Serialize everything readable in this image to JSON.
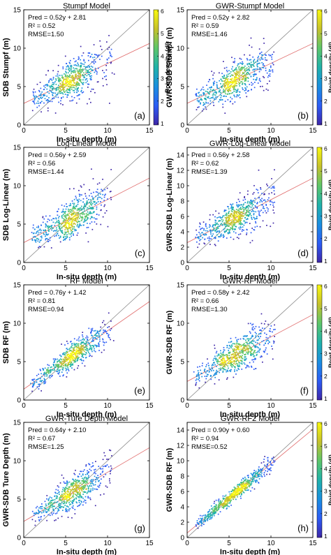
{
  "colors": {
    "identity_line": "#8a8a8a",
    "fit_line": "#e06a6a",
    "axis": "#000000",
    "colormap": [
      "#3e26a8",
      "#2c5cf5",
      "#1a8fe0",
      "#20b2aa",
      "#5dc66a",
      "#c6c12b",
      "#f9f90e"
    ]
  },
  "chart_data": [
    {
      "id": "a",
      "type": "scatter",
      "title": "Stumpf Model",
      "xlabel": "In-situ depth (m)",
      "ylabel": "SDB Stumpf (m)",
      "xlim": [
        0,
        15
      ],
      "ylim": [
        0,
        15
      ],
      "xticks": [
        "0",
        "5",
        "10",
        "15"
      ],
      "yticks": [
        "0",
        "5",
        "10",
        "15"
      ],
      "fit": {
        "slope": 0.52,
        "intercept": 2.81
      },
      "stats": [
        "Pred = 0.52y + 2.81",
        "R² = 0.52",
        "RMSE=1.50"
      ],
      "panel_label": "(a)",
      "scatter_spread": 1.2,
      "colorbar": {
        "label": "Point density (dl)",
        "ticks": [
          "1",
          "2",
          "3",
          "4",
          "5",
          "6"
        ]
      }
    },
    {
      "id": "b",
      "type": "scatter",
      "title": "GWR-Stumpf Model",
      "xlabel": "In-situ depth (m)",
      "ylabel": "GWR-SDB Stumpf (m)",
      "xlim": [
        0,
        15
      ],
      "ylim": [
        0,
        15
      ],
      "xticks": [
        "0",
        "5",
        "10",
        "15"
      ],
      "yticks": [
        "0",
        "5",
        "10",
        "15"
      ],
      "fit": {
        "slope": 0.52,
        "intercept": 2.82
      },
      "stats": [
        "Pred = 0.52y + 2.82",
        "R² = 0.59",
        "RMSE=1.46"
      ],
      "panel_label": "(b)",
      "scatter_spread": 1.15,
      "colorbar": {
        "label": "Point density (dl)",
        "ticks": [
          "1",
          "2",
          "3",
          "4",
          "5",
          "6"
        ]
      }
    },
    {
      "id": "c",
      "type": "scatter",
      "title": "Log-Linear Model",
      "xlabel": "In-situ depth (m)",
      "ylabel": "SDB Log-Linear (m)",
      "xlim": [
        0,
        15
      ],
      "ylim": [
        0,
        15
      ],
      "xticks": [
        "0",
        "5",
        "10",
        "15"
      ],
      "yticks": [
        "0",
        "5",
        "10",
        "15"
      ],
      "fit": {
        "slope": 0.56,
        "intercept": 2.59
      },
      "stats": [
        "Pred = 0.56y + 2.59",
        "R² = 0.56",
        "RMSE=1.44"
      ],
      "panel_label": "(c)",
      "scatter_spread": 1.15,
      "colorbar": null
    },
    {
      "id": "d",
      "type": "scatter",
      "title": "GWR-Log-Linear Model",
      "xlabel": "In-situ depth (m)",
      "ylabel": "GWR-SDB Log-Linear (m)",
      "xlim": [
        0,
        15
      ],
      "ylim": [
        0,
        15
      ],
      "xticks": [
        "0",
        "5",
        "10",
        "15"
      ],
      "yticks": [
        "0",
        "2",
        "4",
        "6",
        "8",
        "10",
        "12",
        "14"
      ],
      "fit": {
        "slope": 0.56,
        "intercept": 2.58
      },
      "stats": [
        "Pred = 0.56y + 2.58",
        "R² = 0.62",
        "RMSE=1.39"
      ],
      "panel_label": "(d)",
      "scatter_spread": 1.1,
      "colorbar": {
        "label": "Point density (dl)",
        "ticks": [
          "1",
          "2",
          "3",
          "4",
          "5",
          "6"
        ]
      }
    },
    {
      "id": "e",
      "type": "scatter",
      "title": "RF Model",
      "xlabel": "In-situ depth (m)",
      "ylabel": "SDB RF (m)",
      "xlim": [
        0,
        15
      ],
      "ylim": [
        0,
        15
      ],
      "xticks": [
        "0",
        "5",
        "10",
        "15"
      ],
      "yticks": [
        "0",
        "5",
        "10",
        "15"
      ],
      "fit": {
        "slope": 0.76,
        "intercept": 1.42
      },
      "stats": [
        "Pred = 0.76y + 1.42",
        "R² = 0.81",
        "RMSE=0.94"
      ],
      "panel_label": "(e)",
      "scatter_spread": 0.75,
      "colorbar": null
    },
    {
      "id": "f",
      "type": "scatter",
      "title": "GWR-RF Model",
      "xlabel": "In-situ depth (m)",
      "ylabel": "GWR-SDB RF (m)",
      "xlim": [
        0,
        15
      ],
      "ylim": [
        0,
        15
      ],
      "xticks": [
        "0",
        "5",
        "10",
        "15"
      ],
      "yticks": [
        "0",
        "5",
        "10",
        "15"
      ],
      "fit": {
        "slope": 0.58,
        "intercept": 2.42
      },
      "stats": [
        "Pred = 0.58y + 2.42",
        "R² = 0.66",
        "RMSE=1.30"
      ],
      "panel_label": "(f)",
      "scatter_spread": 1.05,
      "colorbar": {
        "label": "Point density (dl)",
        "ticks": [
          "1",
          "2",
          "3",
          "4",
          "5",
          "6"
        ]
      }
    },
    {
      "id": "g",
      "type": "scatter",
      "title": "GWR-Ture Depth Model",
      "xlabel": "In-situ depth (m)",
      "ylabel": "GWR-SDB Ture Depth (m)",
      "xlim": [
        0,
        15
      ],
      "ylim": [
        0,
        15
      ],
      "xticks": [
        "0",
        "5",
        "10",
        "15"
      ],
      "yticks": [
        "0",
        "5",
        "10",
        "15"
      ],
      "fit": {
        "slope": 0.64,
        "intercept": 2.1
      },
      "stats": [
        "Pred = 0.64y + 2.10",
        "R² = 0.67",
        "RMSE=1.25"
      ],
      "panel_label": "(g)",
      "scatter_spread": 1.0,
      "colorbar": null
    },
    {
      "id": "h",
      "type": "scatter",
      "title": "GWR-RF2 Model",
      "xlabel": "In-situ depth (m)",
      "ylabel": "GWR-SDB RF (m)",
      "xlim": [
        0,
        15
      ],
      "ylim": [
        0,
        15
      ],
      "xticks": [
        "0",
        "5",
        "10",
        "15"
      ],
      "yticks": [
        "0",
        "2",
        "4",
        "6",
        "8",
        "10",
        "12",
        "14"
      ],
      "fit": {
        "slope": 0.9,
        "intercept": 0.6
      },
      "stats": [
        "Pred = 0.90y + 0.60",
        "R² = 0.94",
        "RMSE=0.52"
      ],
      "panel_label": "(h)",
      "scatter_spread": 0.45,
      "colorbar": {
        "label": "Point density (dl)",
        "ticks": [
          "1",
          "2",
          "3",
          "4",
          "5",
          "6"
        ]
      }
    }
  ]
}
